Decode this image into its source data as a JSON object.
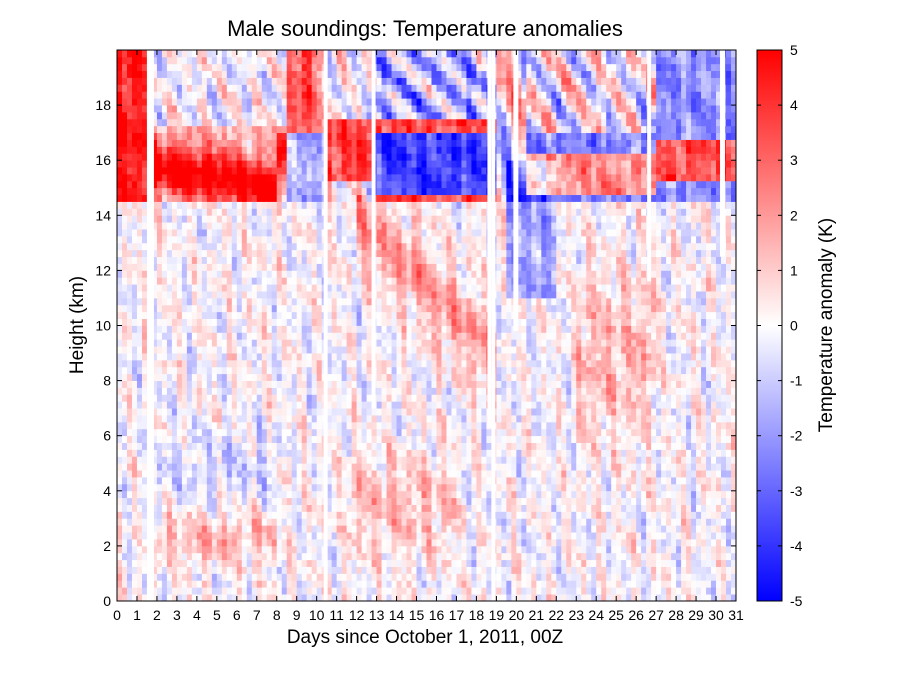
{
  "chart_data": {
    "type": "heatmap",
    "title": "Male soundings:  Temperature anomalies",
    "xlabel": "Days since October 1, 2011, 00Z",
    "ylabel": "Height (km)",
    "colorbar_label": "Temperature anomaly (K)",
    "xlim": [
      0,
      31
    ],
    "ylim": [
      0,
      20
    ],
    "clim": [
      -5,
      5
    ],
    "x_ticks": [
      "0",
      "1",
      "2",
      "3",
      "4",
      "5",
      "6",
      "7",
      "8",
      "9",
      "10",
      "11",
      "12",
      "13",
      "14",
      "15",
      "16",
      "17",
      "18",
      "19",
      "20",
      "21",
      "22",
      "23",
      "24",
      "25",
      "26",
      "27",
      "28",
      "29",
      "30",
      "31"
    ],
    "y_ticks": [
      "0",
      "2",
      "4",
      "6",
      "8",
      "10",
      "12",
      "14",
      "16",
      "18"
    ],
    "colorbar_ticks": [
      "-5",
      "-4",
      "-3",
      "-2",
      "-1",
      "0",
      "1",
      "2",
      "3",
      "4",
      "5"
    ],
    "colormap": {
      "low": "#0000ff",
      "mid": "#ffffff",
      "high": "#ff0000"
    },
    "missing_data_days": [
      {
        "x": [
          1.5,
          1.85
        ],
        "y": [
          0,
          20
        ]
      },
      {
        "x": [
          10.35,
          10.55
        ],
        "y": [
          0,
          20
        ]
      },
      {
        "x": [
          12.75,
          12.95
        ],
        "y": [
          7,
          20
        ]
      },
      {
        "x": [
          18.55,
          18.75
        ],
        "y": [
          6.3,
          20
        ]
      },
      {
        "x": [
          18.75,
          18.95
        ],
        "y": [
          0,
          20
        ]
      },
      {
        "x": [
          19.85,
          20.1
        ],
        "y": [
          9.8,
          20
        ]
      },
      {
        "x": [
          26.55,
          26.75
        ],
        "y": [
          11.6,
          20
        ]
      },
      {
        "x": [
          30.2,
          30.45
        ],
        "y": [
          12.5,
          20
        ]
      }
    ]
  }
}
